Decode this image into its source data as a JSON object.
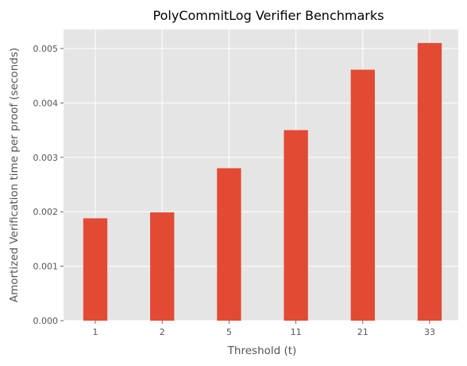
{
  "chart_data": {
    "type": "bar",
    "title": "PolyCommitLog Verifier Benchmarks",
    "xlabel": "Threshold (t)",
    "ylabel": "Amortized Verification time per proof (seconds)",
    "categories": [
      "1",
      "2",
      "5",
      "11",
      "21",
      "33"
    ],
    "values": [
      0.00188,
      0.00199,
      0.0028,
      0.0035,
      0.00461,
      0.0051
    ],
    "ylim": [
      0,
      0.00535
    ],
    "yticks": [
      "0.000",
      "0.001",
      "0.002",
      "0.003",
      "0.004",
      "0.005"
    ],
    "grid": true,
    "bar_color": "#E24A33",
    "background_color": "#E5E5E5"
  }
}
